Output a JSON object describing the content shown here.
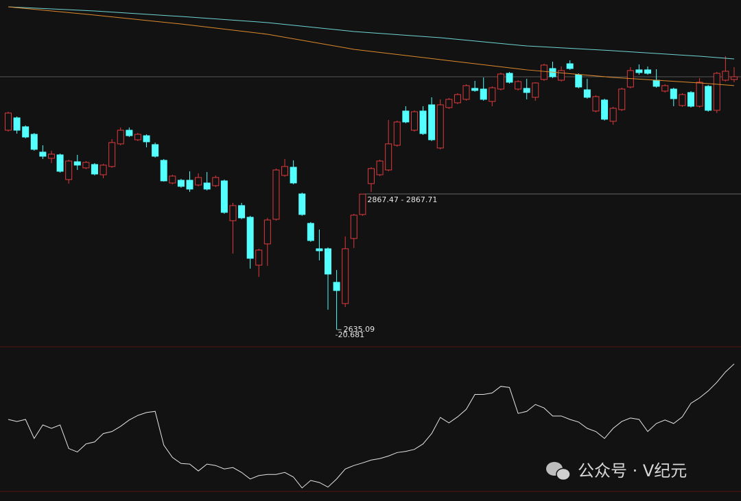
{
  "chart_data": [
    {
      "type": "candlestick",
      "up_color": "#e03a3e",
      "down_color": "#54ffff",
      "open": [
        2976.9,
        2998.1,
        2982.8,
        2969.9,
        2939.4,
        2928.8,
        2934.7,
        2892.4,
        2922.9,
        2912.4,
        2918.2,
        2900.6,
        2914.7,
        2953.5,
        2976.9,
        2960.5,
        2967.5,
        2952.3,
        2925.3,
        2886.5,
        2891.2,
        2891.2,
        2883.0,
        2886.5,
        2881.9,
        2890.1,
        2821.9,
        2847.8,
        2827.8,
        2745.7,
        2782.1,
        2824.3,
        2899.5,
        2913.5,
        2867.8,
        2817.3,
        2773.8,
        2773.8,
        2716.3,
        2679.9,
        2791.4,
        2832.5,
        2885.4,
        2900.6,
        2908.8,
        2951.1,
        3009.8,
        2976.9,
        3009.8,
        3020.4,
        2946.4,
        3015.7,
        3023.9,
        3029.8,
        3048.6,
        3047.4,
        3026.2,
        3047.4,
        3074.4,
        3047.4,
        3048.6,
        3033.3,
        3063.8,
        3082.6,
        3062.6,
        3090.8,
        3072.0,
        3046.2,
        3009.8,
        3028.6,
        2992.2,
        3012.2,
        3050.9,
        3080.3,
        3080.3,
        3062.6,
        3043.9,
        3047.4,
        3019.2,
        3041.5,
        3018.0,
        3052.1,
        3011.0,
        3062.6,
        3063.8
      ],
      "high": [
        3008.6,
        3000.4,
        2985.2,
        2972.2,
        2951.1,
        2941.7,
        2937.0,
        2926.5,
        2934.7,
        2924.1,
        2920.6,
        2919.4,
        2961.7,
        2981.6,
        2981.6,
        2972.2,
        2969.9,
        2955.8,
        2927.6,
        2900.6,
        2893.6,
        2906.5,
        2903.0,
        2905.3,
        2899.5,
        2892.4,
        2852.5,
        2852.5,
        2830.2,
        2773.8,
        2826.7,
        2911.2,
        2927.6,
        2925.3,
        2870.1,
        2819.6,
        2806.7,
        2776.2,
        2737.4,
        2795.0,
        2833.7,
        2867.71,
        2913.5,
        2926.5,
        2994.6,
        2993.4,
        3018.0,
        3011.0,
        3018.0,
        3033.3,
        3029.8,
        3032.1,
        3040.3,
        3055.6,
        3061.5,
        3067.3,
        3052.1,
        3075.6,
        3076.7,
        3062.6,
        3065.0,
        3059.1,
        3090.8,
        3094.3,
        3086.1,
        3096.7,
        3074.4,
        3065.0,
        3036.8,
        3030.9,
        3016.9,
        3049.7,
        3085.0,
        3089.6,
        3086.1,
        3081.4,
        3055.6,
        3049.7,
        3040.3,
        3043.9,
        3066.2,
        3054.4,
        3076.7,
        3103.7,
        3085.0
      ],
      "low": [
        2974.6,
        2971.1,
        2962.9,
        2941.7,
        2927.6,
        2920.6,
        2904.2,
        2885.4,
        2908.8,
        2910.0,
        2899.5,
        2894.8,
        2912.4,
        2951.1,
        2965.2,
        2958.2,
        2947.6,
        2930.0,
        2888.9,
        2884.2,
        2878.3,
        2871.3,
        2880.7,
        2873.6,
        2879.5,
        2833.7,
        2765.6,
        2824.3,
        2739.8,
        2725.7,
        2744.5,
        2821.9,
        2897.1,
        2884.2,
        2830.2,
        2785.6,
        2753.9,
        2669.4,
        2635.09,
        2674.0,
        2775.0,
        2830.2,
        2871.3,
        2898.3,
        2906.5,
        2948.8,
        2988.7,
        2974.6,
        2968.7,
        2958.2,
        2944.1,
        3013.3,
        3021.6,
        3027.4,
        3042.7,
        3027.4,
        3018.0,
        3045.0,
        3056.8,
        3045.0,
        3029.8,
        3027.4,
        3061.5,
        3066.2,
        3060.3,
        3080.3,
        3048.6,
        3030.9,
        3007.5,
        2993.4,
        2986.3,
        3009.8,
        3048.6,
        3072.0,
        3072.0,
        3049.7,
        3041.5,
        3018.0,
        3016.9,
        3015.7,
        3015.7,
        3008.6,
        3006.3,
        3060.3,
        3059.1
      ],
      "close": [
        3006.3,
        2976.9,
        2965.2,
        2944.1,
        2932.3,
        2935.9,
        2906.5,
        2924.1,
        2917.1,
        2921.8,
        2901.8,
        2917.1,
        2955.8,
        2976.9,
        2967.5,
        2969.9,
        2957.0,
        2932.3,
        2890.1,
        2898.3,
        2880.7,
        2876.0,
        2895.9,
        2876.0,
        2895.9,
        2836.1,
        2847.8,
        2826.7,
        2757.4,
        2771.5,
        2823.1,
        2908.8,
        2914.7,
        2886.5,
        2832.5,
        2787.9,
        2770.3,
        2730.4,
        2702.2,
        2773.8,
        2831.4,
        2867.47,
        2911.2,
        2924.1,
        2953.5,
        2991.0,
        2991.0,
        3008.6,
        2971.1,
        2960.5,
        3020.4,
        3029.8,
        3038.0,
        3053.3,
        3045.0,
        3029.8,
        3049.7,
        3073.2,
        3059.1,
        3060.3,
        3041.5,
        3057.9,
        3088.5,
        3068.5,
        3079.1,
        3082.6,
        3050.9,
        3033.3,
        3034.5,
        2995.7,
        3014.5,
        3047.4,
        3079.1,
        3075.6,
        3074.4,
        3052.1,
        3053.3,
        3030.9,
        3038.0,
        3018.0,
        3059.1,
        3011.0,
        3074.4,
        3077.9,
        3068.5
      ],
      "lines": [
        {
          "color": "#6fd6d6",
          "x": [
            0,
            10,
            20,
            30,
            40,
            50,
            60,
            70,
            80,
            84
          ],
          "values": [
            3188.3,
            3181.2,
            3171.8,
            3161.3,
            3146.0,
            3135.4,
            3121.3,
            3113.1,
            3103.7,
            3099.0
          ]
        },
        {
          "color": "#e08a2c",
          "x": [
            0,
            10,
            20,
            30,
            40,
            50,
            60,
            70,
            80,
            84
          ],
          "values": [
            3188.3,
            3174.2,
            3158.9,
            3141.3,
            3115.5,
            3097.9,
            3080.3,
            3067.3,
            3057.9,
            3053.3
          ]
        }
      ],
      "annotations": [
        "2867.47 - 2867.71",
        "2635.09",
        "-20.681"
      ],
      "ylim": [
        2607,
        3200
      ]
    },
    {
      "type": "line",
      "color": "#e6e6e6",
      "ylim": [
        -25,
        25
      ],
      "values": [
        0,
        -0.7,
        0,
        -6.6,
        -1.9,
        -3.1,
        -1.9,
        -10.1,
        -11.3,
        -8.5,
        -7.8,
        -4.9,
        -4.2,
        -2.4,
        -0.2,
        1.4,
        2.4,
        2.8,
        -8.9,
        -13.2,
        -15.3,
        -15.5,
        -17.9,
        -15.5,
        -16.0,
        -17.2,
        -16.7,
        -18.4,
        -20.7,
        -19.5,
        -19.1,
        -19.1,
        -18.4,
        -20.0,
        -23.8,
        -21.2,
        -21.9,
        -23.5,
        -20.681,
        -17.2,
        -16.0,
        -15.1,
        -14.1,
        -13.6,
        -12.7,
        -11.5,
        -11.1,
        -10.4,
        -8.5,
        -4.9,
        0.7,
        -1.2,
        0.9,
        3.5,
        8.7,
        8.7,
        9.2,
        11.5,
        11.1,
        2.1,
        2.8,
        5.2,
        4.0,
        1.2,
        1.2,
        0,
        -0.9,
        -3.1,
        -4.2,
        -6.6,
        -3.1,
        -0.7,
        0.5,
        0,
        -4.2,
        -1.4,
        -0.2,
        -1.4,
        0.9,
        5.6,
        7.5,
        9.9,
        12.9,
        16.5,
        19.3
      ]
    }
  ],
  "watermark": "公众号 · V纪元"
}
